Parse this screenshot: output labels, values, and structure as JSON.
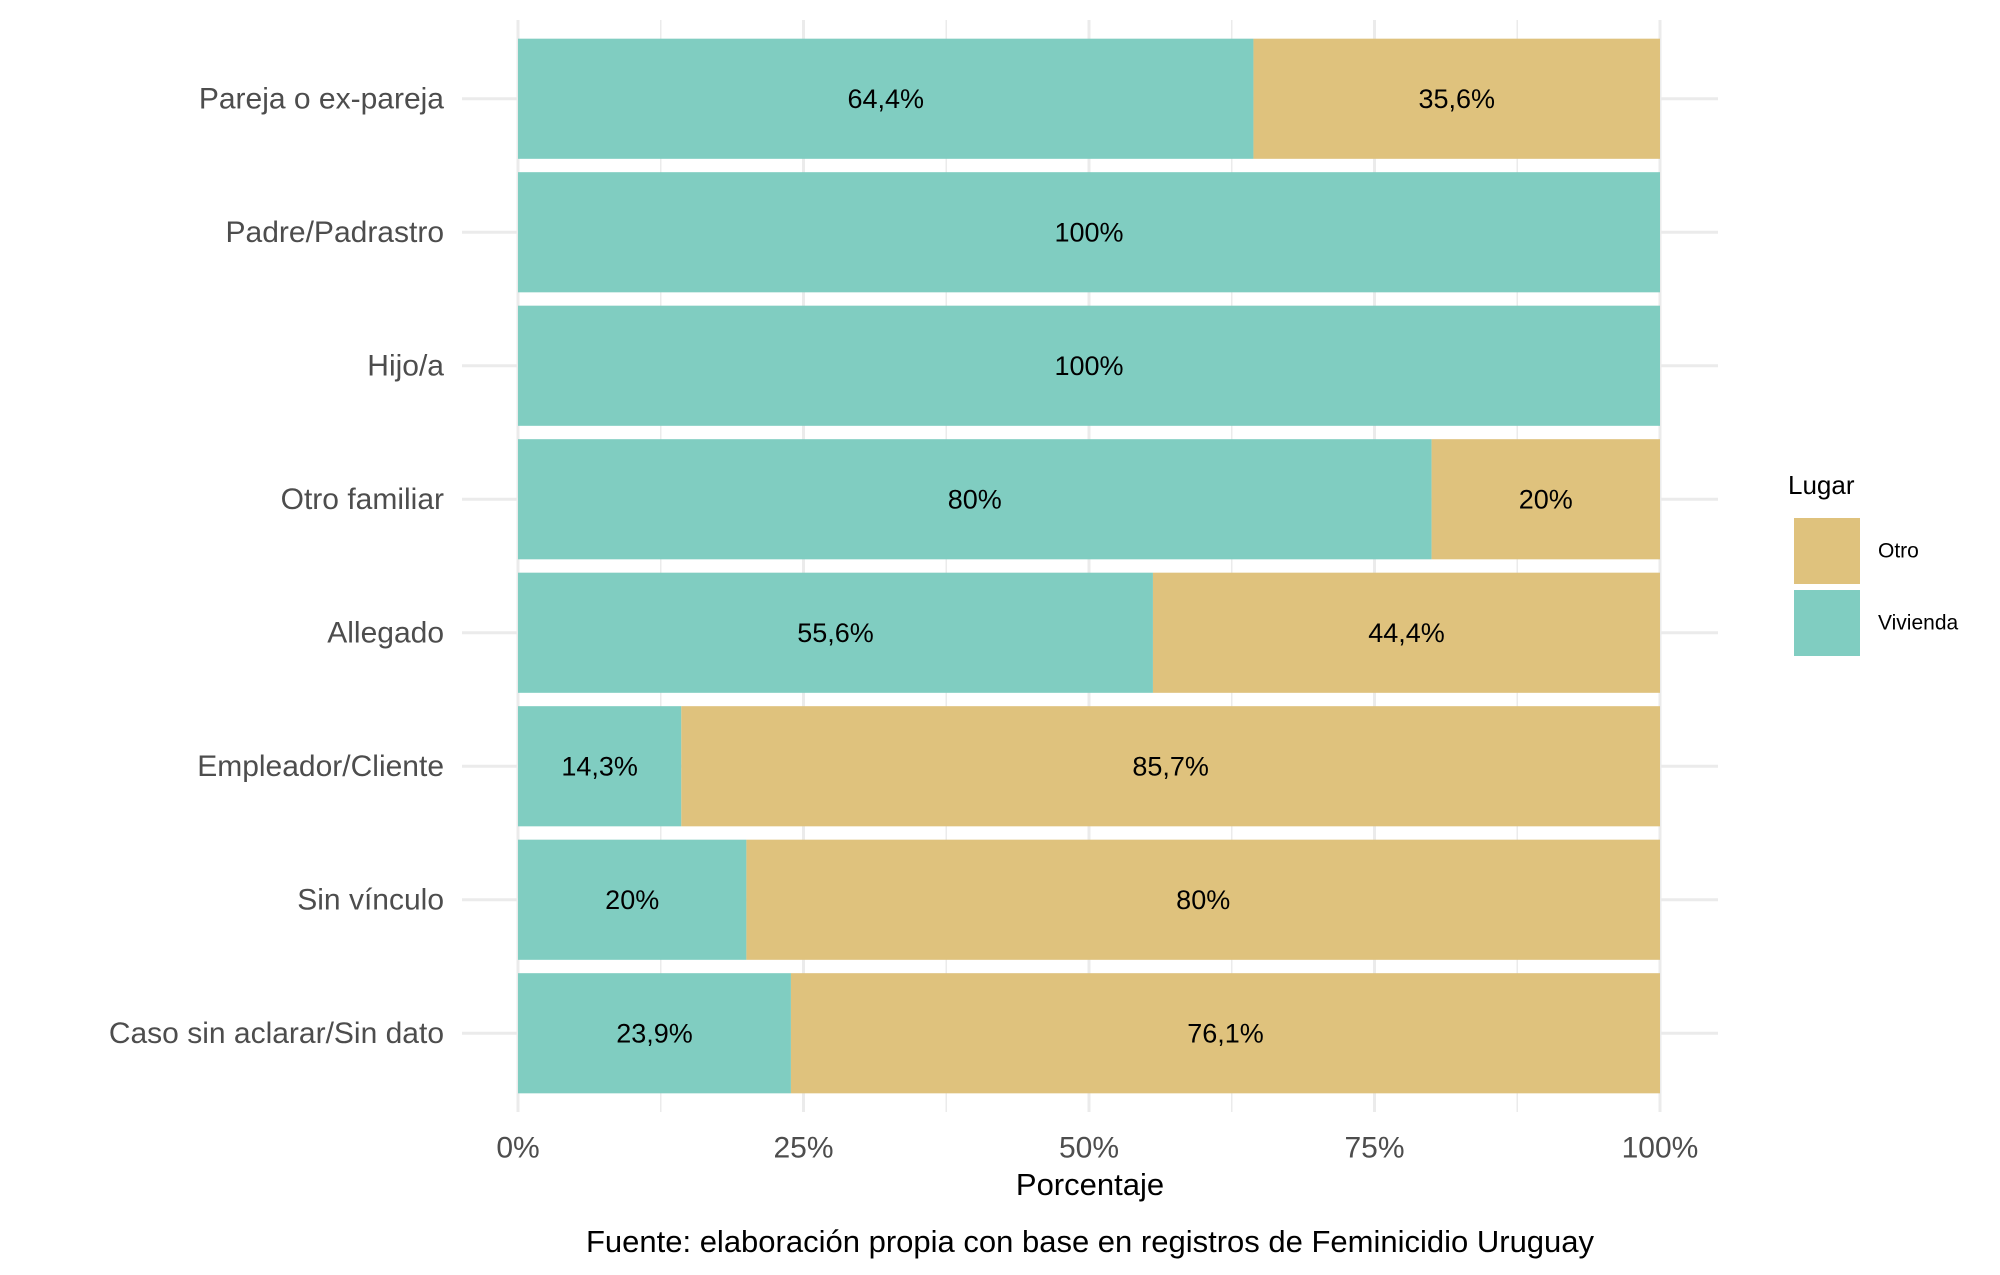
{
  "chart_data": {
    "type": "bar",
    "orientation": "horizontal",
    "stacked": true,
    "categories": [
      "Pareja o ex-pareja",
      "Padre/Padrastro",
      "Hijo/a",
      "Otro familiar",
      "Allegado",
      "Empleador/Cliente",
      "Sin vínculo",
      "Caso sin aclarar/Sin dato"
    ],
    "series": [
      {
        "name": "Vivienda",
        "color": "#80CDC1",
        "values": [
          64.4,
          100,
          100,
          80,
          55.6,
          14.3,
          20,
          23.9
        ],
        "labels": [
          "64,4%",
          "100%",
          "100%",
          "80%",
          "55,6%",
          "14,3%",
          "20%",
          "23,9%"
        ]
      },
      {
        "name": "Otro",
        "color": "#DFC27D",
        "values": [
          35.6,
          0,
          0,
          20,
          44.4,
          85.7,
          80,
          76.1
        ],
        "labels": [
          "35,6%",
          "",
          "",
          "20%",
          "44,4%",
          "85,7%",
          "80%",
          "76,1%"
        ]
      }
    ],
    "xlabel": "Porcentaje",
    "ylabel": "",
    "xlim": [
      0,
      100
    ],
    "xticks": [
      0,
      25,
      50,
      75,
      100
    ],
    "xtick_labels": [
      "0%",
      "25%",
      "50%",
      "75%",
      "100%"
    ],
    "grid": true,
    "legend": {
      "title": "Lugar",
      "position": "right",
      "entries": [
        {
          "name": "Otro",
          "color": "#DFC27D"
        },
        {
          "name": "Vivienda",
          "color": "#80CDC1"
        }
      ]
    },
    "caption": "Fuente: elaboración propia con base en registros de Feminicidio Uruguay"
  }
}
